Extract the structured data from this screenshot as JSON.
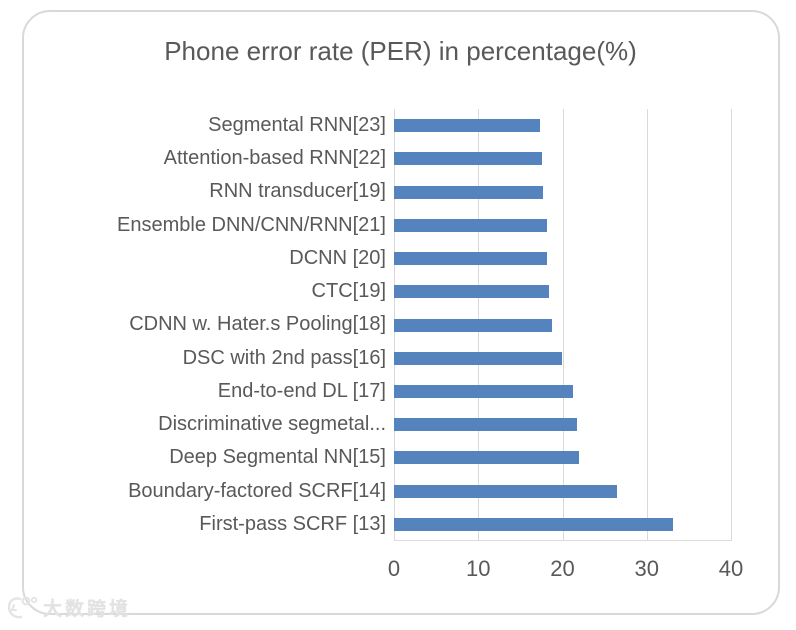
{
  "title": "Phone error rate (PER) in percentage(%)",
  "watermark": {
    "text": "大数跨境"
  },
  "colors": {
    "bar": "#5583bd",
    "grid": "#d9d9d9",
    "text": "#595959",
    "panel_border": "#d9d9d9",
    "watermark": "#e2e2e2"
  },
  "chart_data": {
    "type": "bar",
    "orientation": "horizontal",
    "title": "Phone error rate (PER) in percentage(%)",
    "categories": [
      "Segmental RNN[23]",
      "Attention-based RNN[22]",
      "RNN transducer[19]",
      "Ensemble DNN/CNN/RNN[21]",
      "DCNN [20]",
      "CTC[19]",
      "CDNN w. Hater.s Pooling[18]",
      "DSC with 2nd pass[16]",
      "End-to-end DL [17]",
      "Discriminative segmetal...",
      "Deep Segmental NN[15]",
      "Boundary-factored SCRF[14]",
      "First-pass SCRF [13]"
    ],
    "values": [
      17.3,
      17.6,
      17.7,
      18.2,
      18.2,
      18.4,
      18.7,
      19.9,
      21.2,
      21.7,
      21.9,
      26.5,
      33.1
    ],
    "xlabel": "",
    "ylabel": "",
    "xlim": [
      0,
      40
    ],
    "xticks": [
      0,
      10,
      20,
      30,
      40
    ],
    "grid": "vertical",
    "legend": "none",
    "unit": "percent"
  }
}
